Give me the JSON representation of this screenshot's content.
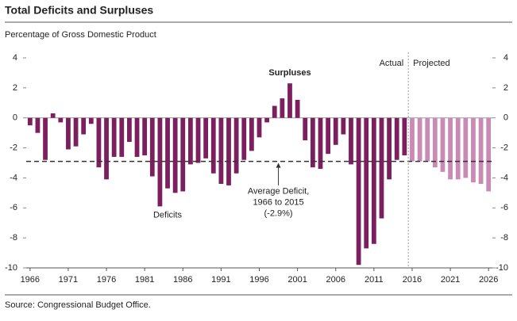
{
  "chart_data": {
    "type": "bar",
    "title": "Total Deficits and Surpluses",
    "subtitle": "Percentage of Gross Domestic Product",
    "source": "Source: Congressional Budget Office.",
    "x": [
      1966,
      1967,
      1968,
      1969,
      1970,
      1971,
      1972,
      1973,
      1974,
      1975,
      1976,
      1977,
      1978,
      1979,
      1980,
      1981,
      1982,
      1983,
      1984,
      1985,
      1986,
      1987,
      1988,
      1989,
      1990,
      1991,
      1992,
      1993,
      1994,
      1995,
      1996,
      1997,
      1998,
      1999,
      2000,
      2001,
      2002,
      2003,
      2004,
      2005,
      2006,
      2007,
      2008,
      2009,
      2010,
      2011,
      2012,
      2013,
      2014,
      2015,
      2016,
      2017,
      2018,
      2019,
      2020,
      2021,
      2022,
      2023,
      2024,
      2025,
      2026
    ],
    "series": [
      {
        "name": "Actual",
        "color": "#7b1f5e",
        "values": [
          -0.5,
          -1.0,
          -2.8,
          0.3,
          -0.3,
          -2.1,
          -1.9,
          -1.1,
          -0.4,
          -3.3,
          -4.1,
          -2.6,
          -2.6,
          -1.6,
          -2.6,
          -2.5,
          -3.9,
          -5.9,
          -4.7,
          -5.0,
          -4.9,
          -3.1,
          -3.0,
          -2.7,
          -3.7,
          -4.4,
          -4.5,
          -3.7,
          -2.8,
          -2.2,
          -1.3,
          -0.3,
          0.8,
          1.3,
          2.3,
          1.2,
          -1.5,
          -3.3,
          -3.4,
          -2.4,
          -1.8,
          -1.1,
          -3.1,
          -9.8,
          -8.7,
          -8.4,
          -6.7,
          -4.1,
          -2.8,
          -2.5,
          null,
          null,
          null,
          null,
          null,
          null,
          null,
          null,
          null,
          null,
          null
        ]
      },
      {
        "name": "Projected",
        "color": "#c98bb5",
        "values": [
          null,
          null,
          null,
          null,
          null,
          null,
          null,
          null,
          null,
          null,
          null,
          null,
          null,
          null,
          null,
          null,
          null,
          null,
          null,
          null,
          null,
          null,
          null,
          null,
          null,
          null,
          null,
          null,
          null,
          null,
          null,
          null,
          null,
          null,
          null,
          null,
          null,
          null,
          null,
          null,
          null,
          null,
          null,
          null,
          null,
          null,
          null,
          null,
          null,
          null,
          -2.9,
          -2.9,
          -2.9,
          -3.3,
          -3.6,
          -4.1,
          -4.1,
          -4.0,
          -4.3,
          -4.4,
          -4.9
        ]
      }
    ],
    "xlim": [
      1965.5,
      2026.5
    ],
    "xticks": [
      1966,
      1971,
      1976,
      1981,
      1986,
      1991,
      1996,
      2001,
      2006,
      2011,
      2016,
      2021,
      2026
    ],
    "ylim": [
      -10,
      4
    ],
    "yticks": [
      4,
      2,
      0,
      -2,
      -4,
      -6,
      -8,
      -10
    ],
    "y2lim": [
      -10,
      4
    ],
    "y2ticks": [
      4,
      2,
      0,
      -2,
      -4,
      -6,
      -8,
      -10
    ],
    "average": {
      "value": -2.9,
      "label": [
        "Average Deficit,",
        "1966 to 2015",
        "(-2.9%)"
      ]
    },
    "annotations": [
      "Surpluses",
      "Deficits"
    ]
  }
}
